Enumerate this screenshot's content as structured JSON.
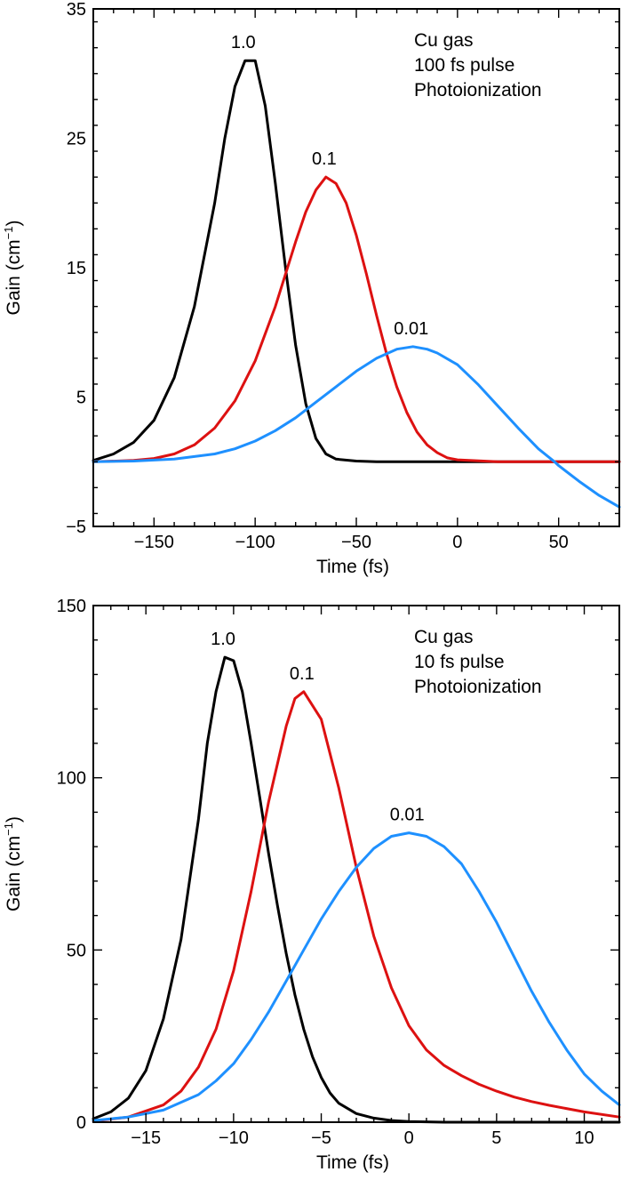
{
  "chart_data": [
    {
      "type": "line",
      "xlabel": "Time (fs)",
      "ylabel": "Gain (cm",
      "ylabel_sup": "−1",
      "ylabel_close": ")",
      "xlim": [
        -180,
        80
      ],
      "ylim": [
        -5,
        35
      ],
      "xticks": [
        -150,
        -100,
        -50,
        0,
        50
      ],
      "xtick_labels": [
        "−150",
        "−100",
        "−50",
        "0",
        "50"
      ],
      "yticks": [
        -5,
        5,
        15,
        25,
        35
      ],
      "ytick_labels": [
        "−5",
        "5",
        "15",
        "25",
        "35"
      ],
      "annotation": [
        "Cu gas",
        "100 fs pulse",
        "Photoionization"
      ],
      "grid": false,
      "series": [
        {
          "name": "1.0",
          "color": "#000000",
          "x": [
            -180,
            -170,
            -160,
            -150,
            -140,
            -130,
            -120,
            -115,
            -110,
            -105,
            -100,
            -95,
            -90,
            -85,
            -80,
            -75,
            -70,
            -65,
            -60,
            -50,
            -40,
            -20,
            0,
            20,
            40,
            60,
            80
          ],
          "y": [
            0.1,
            0.6,
            1.5,
            3.2,
            6.5,
            12,
            20,
            25,
            29,
            31,
            31,
            27.5,
            21.5,
            15,
            9,
            4.5,
            1.8,
            0.6,
            0.2,
            0.05,
            0,
            0,
            0,
            0,
            0,
            0,
            0
          ]
        },
        {
          "name": "0.1",
          "color": "#dd1111",
          "x": [
            -180,
            -160,
            -150,
            -140,
            -130,
            -120,
            -110,
            -100,
            -90,
            -85,
            -80,
            -75,
            -70,
            -65,
            -60,
            -55,
            -50,
            -45,
            -40,
            -35,
            -30,
            -25,
            -20,
            -15,
            -10,
            -5,
            0,
            20,
            40,
            60,
            80
          ],
          "y": [
            0,
            0.1,
            0.25,
            0.6,
            1.3,
            2.6,
            4.7,
            7.8,
            12,
            14.5,
            17,
            19.3,
            21,
            22,
            21.5,
            20,
            17.5,
            14.5,
            11.3,
            8.3,
            5.8,
            3.8,
            2.3,
            1.3,
            0.7,
            0.3,
            0.15,
            0,
            0,
            0,
            0
          ]
        },
        {
          "name": "0.01",
          "color": "#1e90ff",
          "x": [
            -180,
            -160,
            -140,
            -120,
            -110,
            -100,
            -90,
            -80,
            -70,
            -60,
            -50,
            -40,
            -30,
            -22,
            -15,
            -10,
            0,
            10,
            20,
            30,
            40,
            48,
            50,
            60,
            70,
            80
          ],
          "y": [
            0,
            0.05,
            0.2,
            0.6,
            1,
            1.6,
            2.4,
            3.4,
            4.6,
            5.8,
            7,
            8,
            8.7,
            8.9,
            8.7,
            8.4,
            7.5,
            6,
            4.3,
            2.6,
            1,
            0,
            -0.3,
            -1.5,
            -2.6,
            -3.5
          ]
        }
      ]
    },
    {
      "type": "line",
      "xlabel": "Time (fs)",
      "ylabel": "Gain (cm",
      "ylabel_sup": "−1",
      "ylabel_close": ")",
      "xlim": [
        -18,
        12
      ],
      "ylim": [
        0,
        150
      ],
      "xticks": [
        -15,
        -10,
        -5,
        0,
        5,
        10
      ],
      "xtick_labels": [
        "−15",
        "−10",
        "−5",
        "0",
        "5",
        "10"
      ],
      "yticks": [
        0,
        50,
        100,
        150
      ],
      "ytick_labels": [
        "0",
        "50",
        "100",
        "150"
      ],
      "annotation": [
        "Cu gas",
        "10 fs pulse",
        "Photoionization"
      ],
      "grid": false,
      "series": [
        {
          "name": "1.0",
          "color": "#000000",
          "x": [
            -18,
            -17,
            -16,
            -15,
            -14,
            -13,
            -12,
            -11.5,
            -11,
            -10.5,
            -10,
            -9.5,
            -9,
            -8.5,
            -8,
            -7.5,
            -7,
            -6.5,
            -6,
            -5.5,
            -5,
            -4.5,
            -4,
            -3,
            -2,
            -1,
            0,
            2,
            4,
            12
          ],
          "y": [
            1,
            3,
            7,
            15,
            30,
            53,
            88,
            110,
            125,
            135,
            134,
            125,
            110,
            94,
            78,
            63,
            49,
            37,
            27,
            19,
            13,
            8.5,
            5.5,
            2.5,
            1.2,
            0.5,
            0.2,
            0,
            0,
            0
          ]
        },
        {
          "name": "0.1",
          "color": "#dd1111",
          "x": [
            -18,
            -16,
            -14,
            -13,
            -12,
            -11,
            -10,
            -9,
            -8,
            -7,
            -6.5,
            -6,
            -5,
            -4,
            -3,
            -2,
            -1,
            0,
            1,
            2,
            3,
            4,
            5,
            6,
            7,
            8,
            10,
            12
          ],
          "y": [
            0.3,
            1.5,
            5,
            9,
            16,
            27,
            44,
            67,
            93,
            115,
            123,
            125,
            117,
            97,
            74,
            54,
            39,
            28,
            21,
            16.5,
            13.5,
            11,
            9,
            7.3,
            6,
            4.9,
            3,
            1.5
          ]
        },
        {
          "name": "0.01",
          "color": "#1e90ff",
          "x": [
            -18,
            -16,
            -14,
            -12,
            -11,
            -10,
            -9,
            -8,
            -7,
            -6,
            -5,
            -4,
            -3,
            -2,
            -1,
            0,
            1,
            2,
            3,
            4,
            5,
            6,
            7,
            8,
            9,
            10,
            11,
            12
          ],
          "y": [
            0.5,
            1.5,
            3.5,
            8,
            12,
            17,
            24,
            32,
            41,
            50,
            59,
            67,
            74,
            79.5,
            83,
            84,
            83,
            80,
            75,
            67,
            58,
            48,
            38,
            29,
            21,
            14,
            9,
            5
          ]
        }
      ]
    }
  ]
}
